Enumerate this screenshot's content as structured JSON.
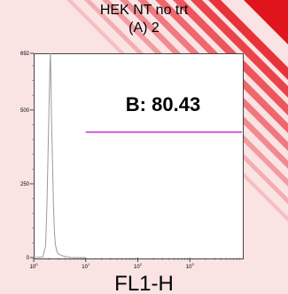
{
  "chart_data": {
    "type": "histogram",
    "title": "HEK NT no trt",
    "subtitle": "(A) 2",
    "xlabel": "FL1-H",
    "ylabel": "",
    "x_scale": "log",
    "xlim": [
      1,
      10000
    ],
    "ylim": [
      0,
      692
    ],
    "x_ticks": [
      "10^0",
      "10^1",
      "10^2",
      "10^3"
    ],
    "y_ticks": [
      0,
      250,
      500,
      692
    ],
    "gate": {
      "label": "B: 80.43",
      "x_start": 10,
      "x_end": 10000,
      "y": 425,
      "color": "#cc33cc"
    },
    "series": [
      {
        "color": "#9a9a9a",
        "x": [
          1.0,
          1.5,
          1.7,
          1.8,
          1.9,
          2.0,
          2.05,
          2.1,
          2.15,
          2.2,
          2.3,
          2.4,
          2.5,
          2.6,
          2.8,
          3.0,
          3.3,
          3.7,
          4.2,
          5.0,
          7.0,
          10.0
        ],
        "y": [
          0,
          2,
          40,
          180,
          380,
          560,
          645,
          692,
          600,
          470,
          320,
          180,
          90,
          45,
          20,
          12,
          8,
          5,
          3,
          1,
          0,
          0
        ]
      }
    ]
  },
  "colors": {
    "frame_bg": "#f9e3e3",
    "stripe": "#e8323a"
  }
}
